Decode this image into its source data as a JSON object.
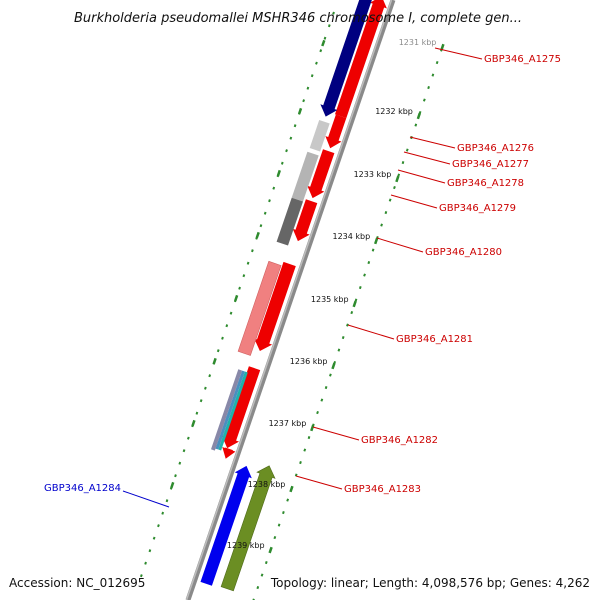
{
  "title": "Burkholderia pseudomallei MSHR346 chromosome I, complete gen...",
  "footer": {
    "accession": "Accession: NC_012695",
    "topology": "Topology: linear; Length: 4,098,576 bp; Genes: 4,262"
  },
  "scale_labels": [
    "1231 kbp",
    "1232 kbp",
    "1233 kbp",
    "1234 kbp",
    "1235 kbp",
    "1236 kbp",
    "1237 kbp",
    "1238 kbp",
    "1239 kbp"
  ],
  "colors": {
    "backbone": "#8a8a8a",
    "tick": "#2e8b2e",
    "label_red": "#cc0000",
    "label_blue": "#0000cc"
  },
  "genes": [
    {
      "label": "GBP346_A1275",
      "label_color": "#cc0000"
    },
    {
      "label": "GBP346_A1276",
      "label_color": "#cc0000"
    },
    {
      "label": "GBP346_A1277",
      "label_color": "#cc0000"
    },
    {
      "label": "GBP346_A1278",
      "label_color": "#cc0000"
    },
    {
      "label": "GBP346_A1279",
      "label_color": "#cc0000"
    },
    {
      "label": "GBP346_A1280",
      "label_color": "#cc0000"
    },
    {
      "label": "GBP346_A1281",
      "label_color": "#cc0000"
    },
    {
      "label": "GBP346_A1282",
      "label_color": "#cc0000"
    },
    {
      "label": "GBP346_A1283",
      "label_color": "#cc0000"
    },
    {
      "label": "GBP346_A1284",
      "label_color": "#0000cc"
    }
  ]
}
